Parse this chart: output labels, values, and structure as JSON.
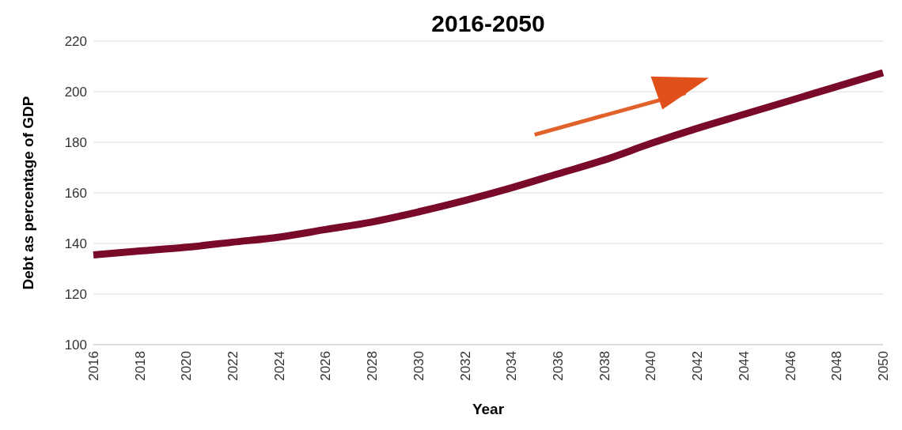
{
  "chart_data": {
    "type": "line",
    "title": "2016-2050",
    "xlabel": "Year",
    "ylabel": "Debt as percentage of GDP",
    "x": [
      2016,
      2018,
      2020,
      2022,
      2024,
      2026,
      2028,
      2030,
      2032,
      2034,
      2036,
      2038,
      2040,
      2042,
      2044,
      2046,
      2048,
      2050
    ],
    "series": [
      {
        "color": "#7a0a2a",
        "values": [
          135.5,
          137,
          138.5,
          140.5,
          142.5,
          145.5,
          148.5,
          152.5,
          157,
          162,
          167.5,
          173,
          179.5,
          185.5,
          191,
          196.5,
          202,
          207.5
        ]
      }
    ],
    "xlim": [
      2016,
      2050
    ],
    "xticks": [
      2016,
      2018,
      2020,
      2022,
      2024,
      2026,
      2028,
      2030,
      2032,
      2034,
      2036,
      2038,
      2040,
      2042,
      2044,
      2046,
      2048,
      2050
    ],
    "ylim": [
      100,
      220
    ],
    "yticks": [
      100,
      120,
      140,
      160,
      180,
      200,
      220
    ],
    "grid": "y",
    "marker": "none",
    "line_style": "solid"
  }
}
